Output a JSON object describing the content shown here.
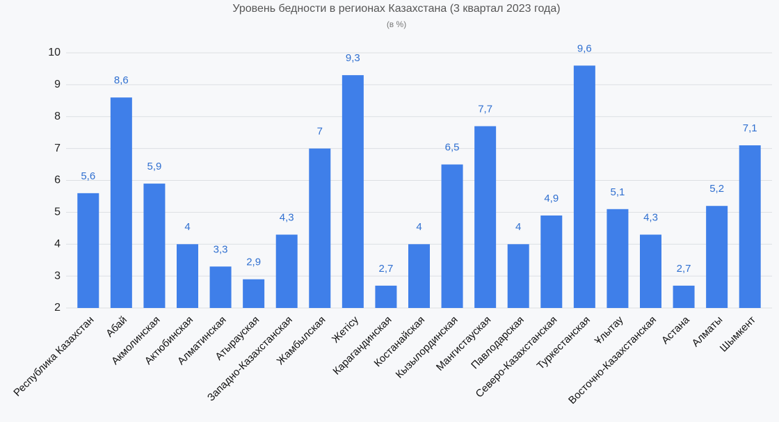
{
  "chart_data": {
    "type": "bar",
    "title": "Уровень бедности в регионах Казахстана (3 квартал 2023 года)",
    "subtitle": "(в %)",
    "categories": [
      "Республика Казахстан",
      "Абай",
      "Акмолинская",
      "Актюбинская",
      "Алматинская",
      "Атырауская",
      "Западно-Казахстанская",
      "Жамбылская",
      "Жетісу",
      "Карагандинская",
      "Костанайская",
      "Кызылординская",
      "Мангистауская",
      "Павлодарская",
      "Северо-Казахстанская",
      "Туркестанская",
      "Ұлытау",
      "Восточно-Казахстанская",
      "Астана",
      "Алматы",
      "Шымкент"
    ],
    "values": [
      5.6,
      8.6,
      5.9,
      4,
      3.3,
      2.9,
      4.3,
      7,
      9.3,
      2.7,
      4,
      6.5,
      7.7,
      4,
      4.9,
      9.6,
      5.1,
      4.3,
      2.7,
      5.2,
      7.1
    ],
    "value_labels": [
      "5,6",
      "8,6",
      "5,9",
      "4",
      "3,3",
      "2,9",
      "4,3",
      "7",
      "9,3",
      "2,7",
      "4",
      "6,5",
      "7,7",
      "4",
      "4,9",
      "9,6",
      "5,1",
      "4,3",
      "2,7",
      "5,2",
      "7,1"
    ],
    "color": "#3f7fe9",
    "ylim": [
      2,
      10
    ],
    "yticks": [
      2,
      3,
      4,
      5,
      6,
      7,
      8,
      9,
      10
    ],
    "grid": true
  }
}
